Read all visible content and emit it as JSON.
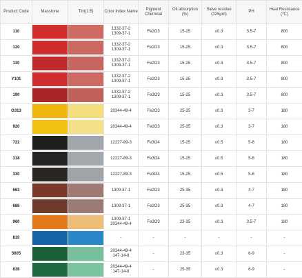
{
  "headers": {
    "product_code": "Product Code",
    "masstone": "Masstone",
    "tint": "Tint(1:5)",
    "color_index": "Color Index Name",
    "pigment": "Pigment Chemical",
    "oil": "Oil absorption (%)",
    "sieve": "Sieve residue (325μm)",
    "ph": "PH",
    "heat": "Heat Resistance (℃)"
  },
  "rows": [
    {
      "code": "110",
      "masstone": "#d42d2d",
      "tint": "#cf6b65",
      "color_index": [
        "1332-37-2",
        "1309-37-1"
      ],
      "pigment": "Fe2O3",
      "oil": "15-25",
      "sieve": "≤0.3",
      "ph": "3.5-7",
      "heat": "800"
    },
    {
      "code": "120",
      "masstone": "#d02c2c",
      "tint": "#cc6862",
      "color_index": [
        "1332-37-2",
        "1309-37-1"
      ],
      "pigment": "Fe2O3",
      "oil": "15-25",
      "sieve": "≤0.3",
      "ph": "3.5-7",
      "heat": "800"
    },
    {
      "code": "130",
      "masstone": "#c02a2a",
      "tint": "#c76660",
      "color_index": [
        "1332-37-2",
        "1309-37-1"
      ],
      "pigment": "Fe2O3",
      "oil": "15-25",
      "sieve": "≤0.3",
      "ph": "3.5-7",
      "heat": "800"
    },
    {
      "code": "Y101",
      "masstone": "#cf2e2e",
      "tint": "#cd6a64",
      "color_index": [
        "1332-37-2",
        "1309-37-1"
      ],
      "pigment": "Fe2O3",
      "oil": "15-25",
      "sieve": "≤0.3",
      "ph": "3.5-7",
      "heat": "800"
    },
    {
      "code": "190",
      "masstone": "#a82626",
      "tint": "#c0615c",
      "color_index": [
        "1332-37-2",
        "1309-37-1"
      ],
      "pigment": "Fe2O3",
      "oil": "15-25",
      "sieve": "≤0.3",
      "ph": "3.5-7",
      "heat": "800"
    },
    {
      "code": "G313",
      "masstone": "#f1b60c",
      "tint": "#f2de7c",
      "color_index": [
        "20344-49-4"
      ],
      "pigment": "Fe2O3",
      "oil": "25-35",
      "sieve": "≤0.3",
      "ph": "3-7",
      "heat": "180"
    },
    {
      "code": "920",
      "masstone": "#f3c114",
      "tint": "#f4e08a",
      "color_index": [
        "20344-49-4"
      ],
      "pigment": "Fe2O3",
      "oil": "25-35",
      "sieve": "≤0.3",
      "ph": "3-7",
      "heat": "180"
    },
    {
      "code": "722",
      "masstone": "#1e1e1e",
      "tint": "#a0a6ab",
      "color_index": [
        "12227-89-3"
      ],
      "pigment": "Fe3O4",
      "oil": "15-25",
      "sieve": "≤0.5",
      "ph": "5-8",
      "heat": "180"
    },
    {
      "code": "318",
      "masstone": "#262423",
      "tint": "#a3a8ac",
      "color_index": [
        "12227-89-3"
      ],
      "pigment": "Fe3O4",
      "oil": "15-25",
      "sieve": "≤0.5",
      "ph": "5-8",
      "heat": "180"
    },
    {
      "code": "330",
      "masstone": "#2a2624",
      "tint": "#9fa4a8",
      "color_index": [
        "12227-89-3"
      ],
      "pigment": "Fe3O4",
      "oil": "15-25",
      "sieve": "≤0.5",
      "ph": "5-8",
      "heat": "180"
    },
    {
      "code": "663",
      "masstone": "#7a3a2a",
      "tint": "#9e7a72",
      "color_index": [
        "1309-37-1"
      ],
      "pigment": "Fe2O3",
      "oil": "25-35",
      "sieve": "≤0.3",
      "ph": "4-7",
      "heat": "180"
    },
    {
      "code": "686",
      "masstone": "#6e3a2c",
      "tint": "#9a7c74",
      "color_index": [
        "1309-37-1"
      ],
      "pigment": "Fe2O3",
      "oil": "25-35",
      "sieve": "≤0.3",
      "ph": "4-7",
      "heat": "180"
    },
    {
      "code": "960",
      "masstone": "#e27a1c",
      "tint": "#eebd78",
      "color_index": [
        "1309-37-1",
        "20344-49-4"
      ],
      "pigment": "Fe2O3",
      "oil": "23-35",
      "sieve": "≤0.3",
      "ph": "3.5-7",
      "heat": "180"
    },
    {
      "code": "810",
      "masstone": "#1565a8",
      "tint": "#2a87c8",
      "color_index": [
        "-"
      ],
      "pigment": "-",
      "oil": "-",
      "sieve": "-",
      "ph": "-",
      "heat": "-"
    },
    {
      "code": "5605",
      "masstone": "#1d6038",
      "tint": "#78bf9c",
      "color_index": [
        "20344-49-4",
        "147-14-8"
      ],
      "pigment": "-",
      "oil": "23-35",
      "sieve": "≤0.3",
      "ph": "6-9",
      "heat": "-"
    },
    {
      "code": "838",
      "masstone": "#1d6a3e",
      "tint": "#7cc4a0",
      "color_index": [
        "20344-49-4",
        "147-14-8"
      ],
      "pigment": "-",
      "oil": "25-35",
      "sieve": "≤0.3",
      "ph": "6-9",
      "heat": "-"
    }
  ]
}
